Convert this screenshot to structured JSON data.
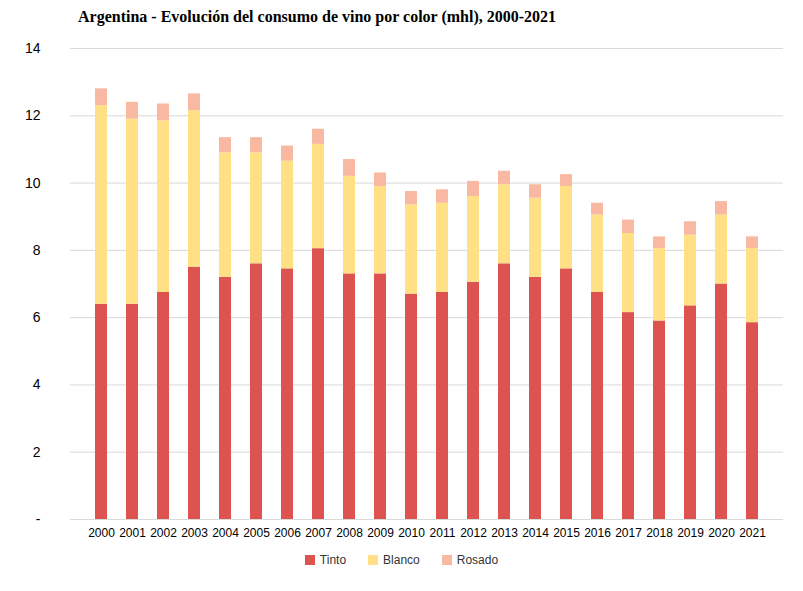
{
  "chart_data": {
    "type": "bar",
    "stacked": true,
    "title": "Argentina - Evolución del consumo de vino por color (mhl), 2000-2021",
    "categories": [
      "2000",
      "2001",
      "2002",
      "2003",
      "2004",
      "2005",
      "2006",
      "2007",
      "2008",
      "2009",
      "2010",
      "2011",
      "2012",
      "2013",
      "2014",
      "2015",
      "2016",
      "2017",
      "2018",
      "2019",
      "2020",
      "2021"
    ],
    "series": [
      {
        "name": "Tinto",
        "color": "#dc5350",
        "values": [
          6.4,
          6.4,
          6.75,
          7.5,
          7.2,
          7.6,
          7.45,
          8.05,
          7.3,
          7.3,
          6.7,
          6.75,
          7.05,
          7.6,
          7.2,
          7.45,
          6.75,
          6.15,
          5.9,
          6.35,
          7.0,
          5.85
        ]
      },
      {
        "name": "Blanco",
        "color": "#ffe084",
        "values": [
          5.9,
          5.5,
          5.1,
          4.65,
          3.7,
          3.3,
          3.2,
          3.1,
          2.9,
          2.6,
          2.65,
          2.65,
          2.55,
          2.35,
          2.35,
          2.45,
          2.3,
          2.35,
          2.15,
          2.1,
          2.05,
          2.2
        ]
      },
      {
        "name": "Rosado",
        "color": "#f8b8a2",
        "values": [
          0.5,
          0.5,
          0.5,
          0.5,
          0.45,
          0.45,
          0.45,
          0.45,
          0.5,
          0.4,
          0.4,
          0.4,
          0.45,
          0.4,
          0.4,
          0.35,
          0.35,
          0.4,
          0.35,
          0.4,
          0.4,
          0.35
        ]
      }
    ],
    "ylim": [
      0,
      14
    ],
    "yticks": [
      {
        "value": 0,
        "label": "-"
      },
      2,
      4,
      6,
      8,
      10,
      12,
      14
    ],
    "grid": true,
    "legend": "bottom"
  }
}
